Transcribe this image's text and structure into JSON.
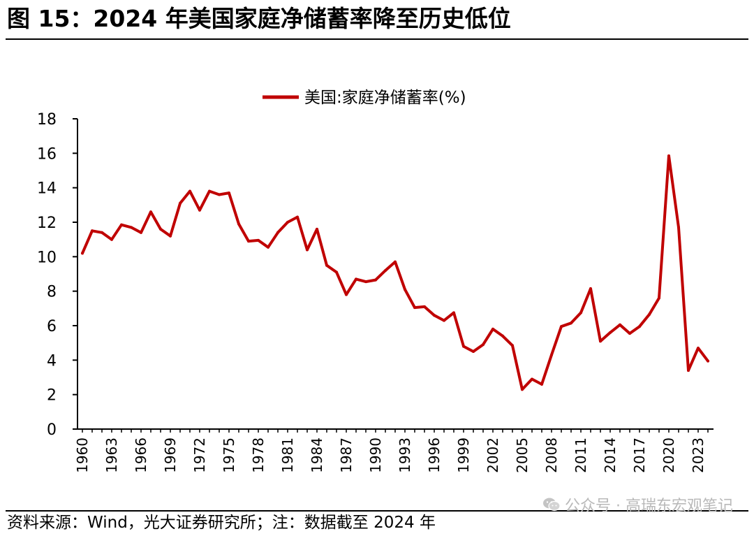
{
  "header": {
    "title": "图 15：2024 年美国家庭净储蓄率降至历史低位"
  },
  "footer": {
    "source": "资料来源：Wind，光大证券研究所；注：数据截至 2024 年",
    "watermark": "公众号 · 高瑞东宏观笔记",
    "watermark_icon": "wechat-icon"
  },
  "colors": {
    "series": "#c00000",
    "axis": "#000000"
  },
  "chart_data": {
    "type": "line",
    "title": "",
    "xlabel": "",
    "ylabel": "",
    "ylim": [
      0,
      18
    ],
    "yticks": [
      0,
      2,
      4,
      6,
      8,
      10,
      12,
      14,
      16,
      18
    ],
    "xticks": [
      1960,
      1963,
      1966,
      1969,
      1972,
      1975,
      1978,
      1981,
      1984,
      1987,
      1990,
      1993,
      1996,
      1999,
      2002,
      2005,
      2008,
      2011,
      2014,
      2017,
      2020,
      2023
    ],
    "xlim": [
      1960,
      2024
    ],
    "grid": false,
    "legend_position": "top-center",
    "series": [
      {
        "name": "美国:家庭净储蓄率(%)",
        "x": [
          1960,
          1961,
          1962,
          1963,
          1964,
          1965,
          1966,
          1967,
          1968,
          1969,
          1970,
          1971,
          1972,
          1973,
          1974,
          1975,
          1976,
          1977,
          1978,
          1979,
          1980,
          1981,
          1982,
          1983,
          1984,
          1985,
          1986,
          1987,
          1988,
          1989,
          1990,
          1991,
          1992,
          1993,
          1994,
          1995,
          1996,
          1997,
          1998,
          1999,
          2000,
          2001,
          2002,
          2003,
          2004,
          2005,
          2006,
          2007,
          2008,
          2009,
          2010,
          2011,
          2012,
          2013,
          2014,
          2015,
          2016,
          2017,
          2018,
          2019,
          2020,
          2021,
          2022,
          2023,
          2024
        ],
        "values": [
          10.2,
          11.5,
          11.4,
          11.0,
          11.85,
          11.7,
          11.4,
          12.6,
          11.6,
          11.2,
          13.1,
          13.8,
          12.7,
          13.8,
          13.6,
          13.7,
          11.9,
          10.9,
          10.95,
          10.55,
          11.4,
          12.0,
          12.3,
          10.4,
          11.6,
          9.5,
          9.1,
          7.8,
          8.7,
          8.55,
          8.65,
          9.2,
          9.7,
          8.1,
          7.05,
          7.1,
          6.6,
          6.3,
          6.75,
          4.8,
          4.5,
          4.9,
          5.8,
          5.4,
          4.85,
          2.3,
          2.9,
          2.6,
          4.3,
          5.95,
          6.15,
          6.75,
          8.15,
          5.1,
          5.6,
          6.05,
          5.55,
          5.95,
          6.65,
          7.6,
          15.85,
          11.7,
          3.4,
          4.7,
          3.95
        ]
      }
    ]
  }
}
